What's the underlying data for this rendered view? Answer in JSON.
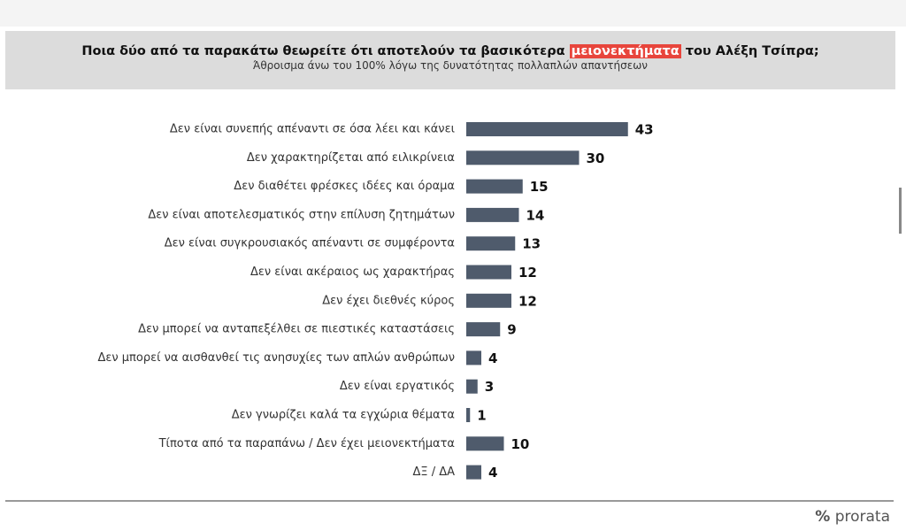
{
  "chart_data": {
    "type": "bar",
    "orientation": "horizontal",
    "title": {
      "before": "Ποια δύο από τα παρακάτω θεωρείτε ότι αποτελούν τα βασικότερα",
      "highlight": "μειονεκτήματα",
      "after": "του Αλέξη Τσίπρα;"
    },
    "subtitle": "Άθροισμα άνω του 100% λόγω της δυνατότητας πολλαπλών απαντήσεων",
    "categories": [
      "Δεν είναι συνεπής απέναντι σε όσα λέει και κάνει",
      "Δεν χαρακτηρίζεται από ειλικρίνεια",
      "Δεν διαθέτει φρέσκες ιδέες και όραμα",
      "Δεν είναι αποτελεσματικός στην επίλυση ζητημάτων",
      "Δεν είναι συγκρουσιακός απέναντι σε συμφέροντα",
      "Δεν είναι ακέραιος ως χαρακτήρας",
      "Δεν έχει διεθνές κύρος",
      "Δεν μπορεί να ανταπεξέλθει σε πιεστικές καταστάσεις",
      "Δεν μπορεί να αισθανθεί τις ανησυχίες των απλών ανθρώπων",
      "Δεν είναι εργατικός",
      "Δεν γνωρίζει καλά τα εγχώρια θέματα",
      "Τίποτα από τα παραπάνω / Δεν έχει μειονεκτήματα",
      "ΔΞ / ΔΑ"
    ],
    "values": [
      43,
      30,
      15,
      14,
      13,
      12,
      12,
      9,
      4,
      3,
      1,
      10,
      4
    ],
    "color": "#4f5b6c",
    "highlight_color": "#e8453c"
  },
  "brand": {
    "symbol": "%",
    "name": "prorata"
  }
}
